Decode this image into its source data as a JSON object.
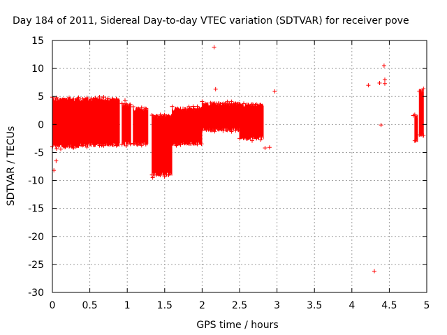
{
  "chart_data": {
    "type": "scatter",
    "title": "Day 184 of 2011, Sidereal Day-to-day VTEC variation (SDTVAR) for receiver pove",
    "xlabel": "GPS time / hours",
    "ylabel": "SDTVAR / TECUs",
    "xlim": [
      0,
      5
    ],
    "ylim": [
      -30,
      15
    ],
    "xticks": [
      0,
      0.5,
      1,
      1.5,
      2,
      2.5,
      3,
      3.5,
      4,
      4.5,
      5
    ],
    "xtick_labels": [
      "0",
      "0.5",
      "1",
      "1.5",
      "2",
      "2.5",
      "3",
      "3.5",
      "4",
      "4.5",
      "5"
    ],
    "yticks": [
      15,
      10,
      5,
      0,
      -5,
      -10,
      -15,
      -20,
      -25,
      -30
    ],
    "ytick_labels": [
      "15",
      "10",
      "5",
      "0",
      "-5",
      "-10",
      "-15",
      "-20",
      "-25",
      "-30"
    ],
    "grid": true,
    "color": "#ff0000",
    "marker": "+",
    "error_bars": true,
    "bands": [
      {
        "x": [
          0.0,
          0.35
        ],
        "low": -4,
        "high": 4.5,
        "center": 0.5
      },
      {
        "x": [
          0.35,
          0.9
        ],
        "low": -3.7,
        "high": 4.5,
        "center": 0.5
      },
      {
        "x": [
          0.93,
          1.05
        ],
        "low": -3.5,
        "high": 3.5,
        "center": 0
      },
      {
        "x": [
          1.08,
          1.28
        ],
        "low": -3.5,
        "high": 2.8,
        "center": -0.5
      },
      {
        "x": [
          1.33,
          1.6
        ],
        "low": -9,
        "high": 1.5,
        "center": -4
      },
      {
        "x": [
          1.6,
          2.0
        ],
        "low": -3.5,
        "high": 2.8,
        "center": -0.5
      },
      {
        "x": [
          2.0,
          2.5
        ],
        "low": -1,
        "high": 3.7,
        "center": 1.5
      },
      {
        "x": [
          2.5,
          2.82
        ],
        "low": -2.5,
        "high": 3.5,
        "center": 0.5
      },
      {
        "x": [
          4.84,
          4.88
        ],
        "low": -3,
        "high": 1.5,
        "center": -1
      },
      {
        "x": [
          4.9,
          4.96
        ],
        "low": -2,
        "high": 6,
        "center": 2
      }
    ],
    "outliers": [
      {
        "x": 0.02,
        "y": -8.2
      },
      {
        "x": 0.05,
        "y": -6.5
      },
      {
        "x": 0.97,
        "y": 4.3
      },
      {
        "x": 1.34,
        "y": -9.5
      },
      {
        "x": 2.16,
        "y": 13.8
      },
      {
        "x": 2.18,
        "y": 6.3
      },
      {
        "x": 2.84,
        "y": -4.2
      },
      {
        "x": 2.9,
        "y": -4.1
      },
      {
        "x": 2.97,
        "y": 5.9
      },
      {
        "x": 4.22,
        "y": 7.0
      },
      {
        "x": 4.3,
        "y": -26.2
      },
      {
        "x": 4.37,
        "y": 7.4
      },
      {
        "x": 4.39,
        "y": -0.1
      },
      {
        "x": 4.43,
        "y": 10.5
      },
      {
        "x": 4.44,
        "y": 8.0
      },
      {
        "x": 4.44,
        "y": 7.3
      },
      {
        "x": 4.82,
        "y": 1.6
      }
    ]
  }
}
